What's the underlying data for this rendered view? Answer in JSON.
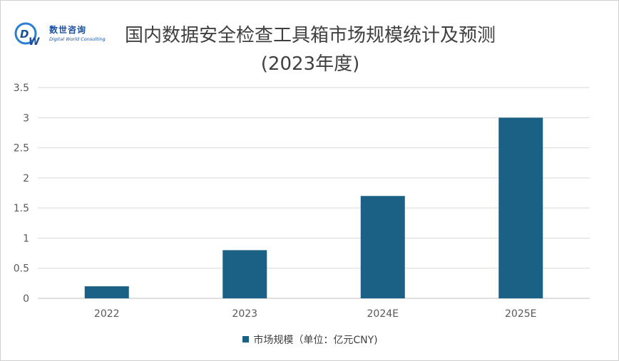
{
  "logo": {
    "name": "数世咨询",
    "sub": "Digital World Consulting",
    "mark": "DW"
  },
  "chart_data": {
    "type": "bar",
    "title": "国内数据安全检查工具箱市场规模统计及预测",
    "subtitle": "(2023年度)",
    "categories": [
      "2022",
      "2023",
      "2024E",
      "2025E"
    ],
    "series": [
      {
        "name": "市场规模（单位：亿元CNY)",
        "values": [
          0.2,
          0.8,
          1.7,
          3.0
        ]
      }
    ],
    "yticks": [
      "0",
      "0.5",
      "1",
      "1.5",
      "2",
      "2.5",
      "3",
      "3.5"
    ],
    "ylim": [
      0,
      3.5
    ],
    "grid": true,
    "legend": "bottom",
    "bar_color": "#1a6185"
  }
}
